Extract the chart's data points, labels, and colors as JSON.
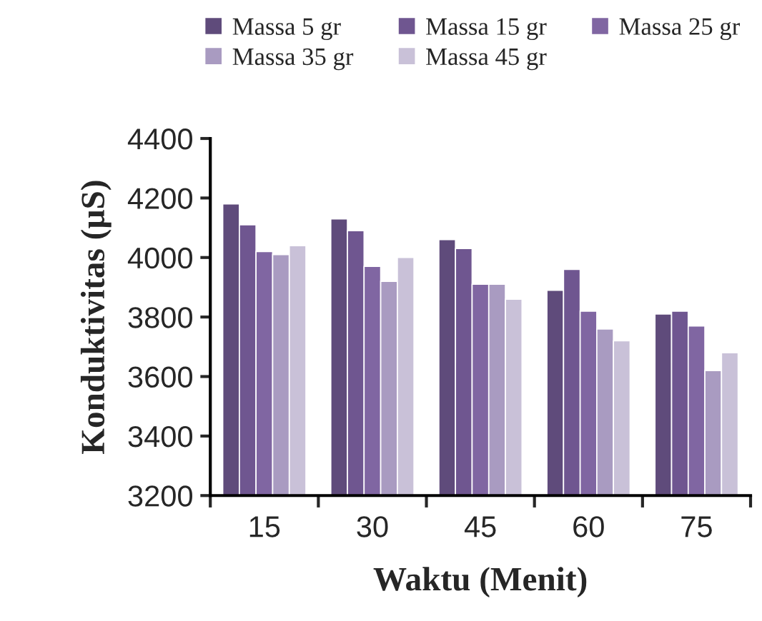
{
  "chart_data": {
    "type": "bar",
    "xlabel": "Waktu (Menit)",
    "ylabel": "Konduktivitas (µS)",
    "categories": [
      "15",
      "30",
      "45",
      "60",
      "75"
    ],
    "series": [
      {
        "name": "Massa 5 gr",
        "color": "#5f4b7b",
        "values": [
          4180,
          4130,
          4060,
          3890,
          3810
        ]
      },
      {
        "name": "Massa 15 gr",
        "color": "#6f5690",
        "values": [
          4110,
          4090,
          4030,
          3960,
          3820
        ]
      },
      {
        "name": "Massa 25 gr",
        "color": "#8066a2",
        "values": [
          4020,
          3970,
          3910,
          3820,
          3770
        ]
      },
      {
        "name": "Massa 35 gr",
        "color": "#a99bc1",
        "values": [
          4010,
          3920,
          3910,
          3760,
          3620
        ]
      },
      {
        "name": "Massa 45 gr",
        "color": "#c9c1d8",
        "values": [
          4040,
          4000,
          3860,
          3720,
          3680
        ]
      }
    ],
    "ylim": [
      3200,
      4400
    ],
    "yticks": [
      3200,
      3400,
      3600,
      3800,
      4000,
      4200,
      4400
    ],
    "grid": false,
    "legend": "top"
  }
}
